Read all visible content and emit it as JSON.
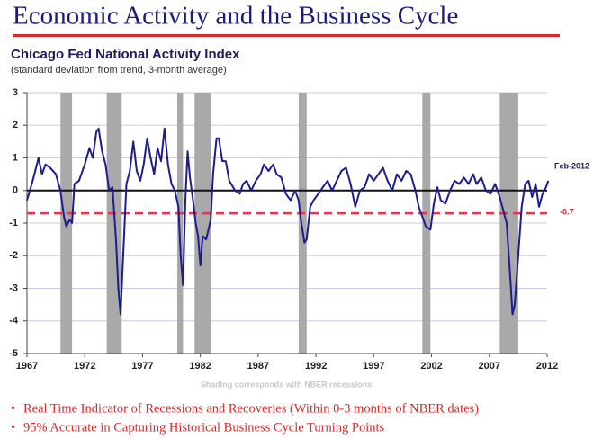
{
  "chart_data": {
    "type": "line",
    "slide_title": "Economic Activity and the Business Cycle",
    "title": "Chicago Fed National Activity Index",
    "subtitle": "(standard deviation from trend, 3-month average)",
    "note": "Shading corresponds with NBER recessions",
    "bullets": [
      "Real Time Indicator of Recessions and Recoveries (Within 0-3 months of NBER dates)",
      "95% Accurate in Capturing Historical Business Cycle Turning Points"
    ],
    "annotation": "Feb-2012",
    "threshold": -0.7,
    "color": "#1c1c8c",
    "threshold_color": "#e8334a",
    "recession_color": "#a9a9a9",
    "grid": true,
    "xlim": [
      1967,
      2012
    ],
    "xticks": [
      1967,
      1972,
      1977,
      1982,
      1987,
      1992,
      1997,
      2002,
      2007,
      2012
    ],
    "ylim": [
      -5,
      3
    ],
    "yticks": [
      3,
      2,
      1,
      0,
      -1,
      -2,
      -3,
      -4,
      -5
    ],
    "recessions": [
      [
        1969.9,
        1970.9
      ],
      [
        1973.9,
        1975.2
      ],
      [
        1980.0,
        1980.5
      ],
      [
        1981.5,
        1982.9
      ],
      [
        1990.5,
        1991.2
      ],
      [
        2001.2,
        2001.9
      ],
      [
        2007.9,
        2009.5
      ]
    ],
    "x": [
      1967,
      1967.5,
      1968,
      1968.3,
      1968.6,
      1969,
      1969.5,
      1969.9,
      1970.2,
      1970.4,
      1970.7,
      1970.9,
      1971.1,
      1971.5,
      1972,
      1972.4,
      1972.7,
      1973,
      1973.2,
      1973.5,
      1973.8,
      1974.1,
      1974.4,
      1974.7,
      1974.9,
      1975.1,
      1975.3,
      1975.6,
      1975.9,
      1976.2,
      1976.5,
      1976.8,
      1977.1,
      1977.4,
      1977.7,
      1978,
      1978.3,
      1978.6,
      1978.9,
      1979.2,
      1979.5,
      1979.8,
      1980.1,
      1980.3,
      1980.5,
      1980.7,
      1980.9,
      1981.1,
      1981.4,
      1981.6,
      1981.8,
      1982,
      1982.2,
      1982.5,
      1982.9,
      1983.1,
      1983.4,
      1983.6,
      1983.9,
      1984.2,
      1984.5,
      1985,
      1985.4,
      1985.7,
      1986,
      1986.4,
      1986.8,
      1987.2,
      1987.5,
      1987.9,
      1988.3,
      1988.6,
      1989,
      1989.4,
      1989.8,
      1990.2,
      1990.5,
      1990.7,
      1991,
      1991.2,
      1991.5,
      1991.8,
      1992.2,
      1992.6,
      1993,
      1993.4,
      1993.8,
      1994.2,
      1994.6,
      1995,
      1995.4,
      1995.8,
      1996.2,
      1996.6,
      1997,
      1997.4,
      1997.8,
      1998.2,
      1998.6,
      1999,
      1999.4,
      1999.8,
      2000.2,
      2000.6,
      2000.9,
      2001.2,
      2001.5,
      2001.9,
      2002.2,
      2002.5,
      2002.8,
      2003.2,
      2003.6,
      2004,
      2004.4,
      2004.8,
      2005.2,
      2005.6,
      2005.9,
      2006.3,
      2006.7,
      2007.1,
      2007.5,
      2007.9,
      2008.2,
      2008.5,
      2008.8,
      2009,
      2009.2,
      2009.5,
      2009.8,
      2010.1,
      2010.4,
      2010.7,
      2011,
      2011.3,
      2011.6,
      2011.9,
      2012.1
    ],
    "values": [
      -0.3,
      0.3,
      1.0,
      0.5,
      0.8,
      0.7,
      0.5,
      0.0,
      -0.8,
      -1.1,
      -0.9,
      -1.0,
      0.2,
      0.3,
      0.8,
      1.3,
      1.0,
      1.8,
      1.9,
      1.2,
      0.8,
      0.0,
      0.1,
      -1.5,
      -3.0,
      -3.8,
      -2.2,
      0.2,
      0.6,
      1.5,
      0.6,
      0.3,
      0.8,
      1.6,
      1.0,
      0.5,
      1.3,
      0.9,
      1.9,
      0.8,
      0.2,
      0.0,
      -0.5,
      -2.0,
      -2.9,
      -0.3,
      1.2,
      0.4,
      -0.4,
      -1.0,
      -1.4,
      -2.3,
      -1.4,
      -1.5,
      -0.9,
      0.5,
      1.6,
      1.6,
      0.9,
      0.9,
      0.3,
      0.0,
      -0.1,
      0.2,
      0.3,
      0.0,
      0.3,
      0.5,
      0.8,
      0.6,
      0.8,
      0.5,
      0.4,
      -0.1,
      -0.3,
      0.0,
      -0.3,
      -0.9,
      -1.6,
      -1.5,
      -0.5,
      -0.3,
      -0.1,
      0.1,
      0.3,
      0.0,
      0.3,
      0.6,
      0.7,
      0.2,
      -0.5,
      0.0,
      0.1,
      0.5,
      0.3,
      0.5,
      0.7,
      0.3,
      0.0,
      0.5,
      0.3,
      0.6,
      0.5,
      0.0,
      -0.5,
      -0.8,
      -1.1,
      -1.2,
      -0.4,
      0.1,
      -0.3,
      -0.4,
      0.0,
      0.3,
      0.2,
      0.4,
      0.2,
      0.5,
      0.2,
      0.4,
      0.0,
      -0.1,
      0.2,
      -0.2,
      -0.6,
      -1.0,
      -2.6,
      -3.8,
      -3.5,
      -2.0,
      -0.5,
      0.2,
      0.3,
      -0.2,
      0.2,
      -0.5,
      -0.1,
      0.1,
      0.3
    ]
  }
}
